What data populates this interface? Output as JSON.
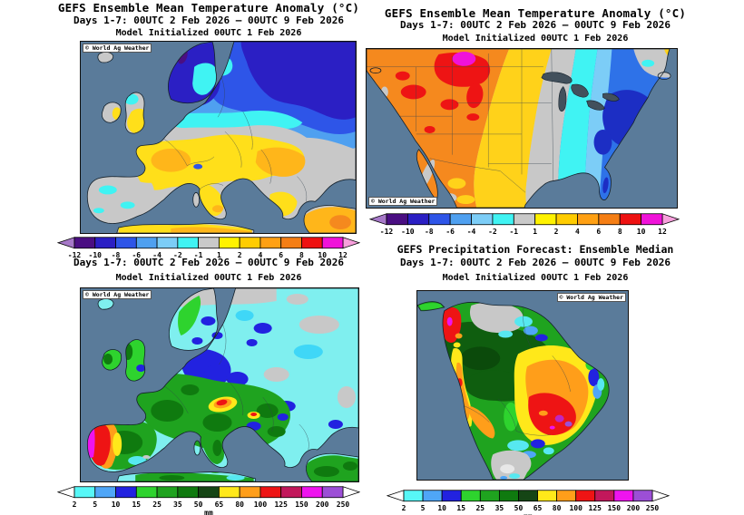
{
  "watermark": "© World Ag Weather",
  "panels": {
    "europe_temp": {
      "title": "GEFS Ensemble Mean Temperature Anomaly (°C)",
      "period": "Days 1-7: 00UTC 2 Feb 2026 – 00UTC 9 Feb 2026",
      "init": "Model Initialized 00UTC 1 Feb 2026"
    },
    "us_temp": {
      "title": "GEFS Ensemble Mean Temperature Anomaly (°C)",
      "period": "Days 1-7: 00UTC 2 Feb 2026 – 00UTC 9 Feb 2026",
      "init": "Model Initialized 00UTC 1 Feb 2026"
    },
    "europe_precip": {
      "period": "Days 1-7: 00UTC 2 Feb 2026 – 00UTC 9 Feb 2026",
      "init": "Model Initialized 00UTC 1 Feb 2026"
    },
    "sa_precip": {
      "title": "GEFS Precipitation Forecast: Ensemble Median",
      "period": "Days 1-7: 00UTC 2 Feb 2026 – 00UTC 9 Feb 2026",
      "init": "Model Initialized 00UTC 1 Feb 2026"
    }
  },
  "colorbars": {
    "temperature": {
      "labels": [
        "-12",
        "-10",
        "-8",
        "-6",
        "-4",
        "-2",
        "-1",
        "1",
        "2",
        "4",
        "6",
        "8",
        "10",
        "12"
      ],
      "colors": [
        "#4A0E82",
        "#2B1FC4",
        "#2E55E8",
        "#4FA0F0",
        "#7CCDF7",
        "#40F3F3",
        "#C9C9C9",
        "#FFF200",
        "#FFCC00",
        "#FFA013",
        "#F57E14",
        "#EE1111",
        "#F012D9"
      ],
      "left_arrow": "#A678C8",
      "right_arrow": "#F79FDC"
    },
    "precipitation": {
      "labels": [
        "2",
        "5",
        "10",
        "15",
        "25",
        "35",
        "50",
        "65",
        "80",
        "100",
        "125",
        "150",
        "200",
        "250"
      ],
      "colors": [
        "#57F7F7",
        "#4FA6F7",
        "#2222E0",
        "#2ED32E",
        "#1FA31F",
        "#0F7A0F",
        "#154515",
        "#FFE81A",
        "#FF9E1A",
        "#EE1414",
        "#C2185B",
        "#EE14EE",
        "#9C4FD6"
      ],
      "left_arrow": "#FFFFFF",
      "right_arrow": "#FFFFFF",
      "unit": "mm"
    }
  },
  "map_colors": {
    "ocean": "#5A7B9A",
    "land_neutral": "#C8C8C8",
    "lakes": "#42505C"
  }
}
